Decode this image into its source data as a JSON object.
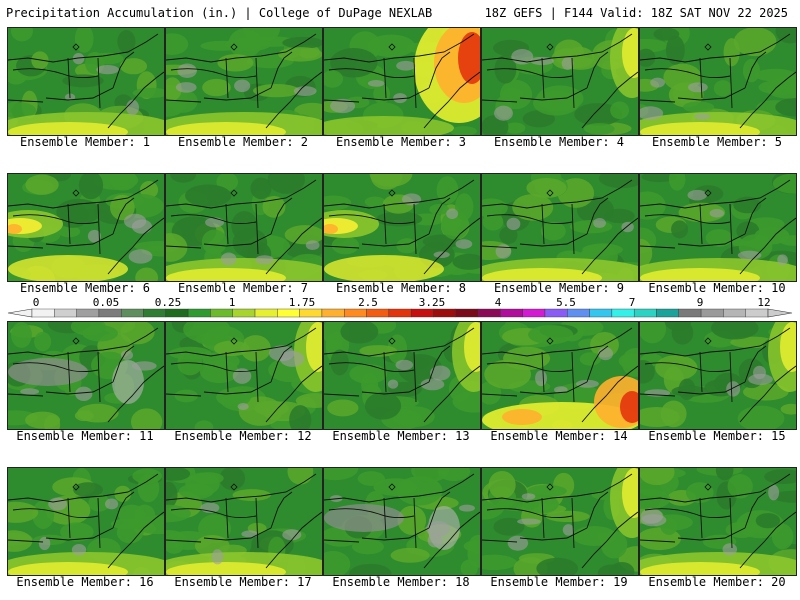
{
  "header": {
    "title": "Precipitation Accumulation (in.) | College of DuPage NEXLAB",
    "run_info": "18Z GEFS | F144 Valid: 18Z SAT NOV 22 2025"
  },
  "colorbar": {
    "labels": [
      "0",
      "0.05",
      "0.25",
      "1",
      "1.75",
      "2.5",
      "3.25",
      "4",
      "5.5",
      "7",
      "9",
      "12"
    ],
    "colors": [
      "#f2f2f2",
      "#cfcfcf",
      "#9f9f9f",
      "#7c7c7c",
      "#5f8f5f",
      "#2e7d32",
      "#1f6b1f",
      "#2f9a2f",
      "#6cbb2c",
      "#a8d42e",
      "#e6ef30",
      "#ffff33",
      "#ffd92f",
      "#ffb02e",
      "#ff8a1f",
      "#f25c13",
      "#e3350d",
      "#c70f0f",
      "#9e0d0d",
      "#7a0a1a",
      "#8b0a58",
      "#b00d9c",
      "#d21bd2",
      "#8a5cf5",
      "#5f8ff0",
      "#33c7f0",
      "#33f0e8",
      "#2bd3c5",
      "#1aa39a",
      "#7a7a7a",
      "#9a9a9a",
      "#b5b5b5",
      "#cccccc"
    ]
  },
  "panels": [
    {
      "label": "Ensemble Member: 1",
      "wet": "south"
    },
    {
      "label": "Ensemble Member: 2",
      "wet": "south"
    },
    {
      "label": "Ensemble Member: 3",
      "wet": "northeast-heavy"
    },
    {
      "label": "Ensemble Member: 4",
      "wet": "east"
    },
    {
      "label": "Ensemble Member: 5",
      "wet": "south"
    },
    {
      "label": "Ensemble Member: 6",
      "wet": "southwest"
    },
    {
      "label": "Ensemble Member: 7",
      "wet": "south"
    },
    {
      "label": "Ensemble Member: 8",
      "wet": "southwest"
    },
    {
      "label": "Ensemble Member: 9",
      "wet": "south"
    },
    {
      "label": "Ensemble Member: 10",
      "wet": "south"
    },
    {
      "label": "Ensemble Member: 11",
      "wet": "dry"
    },
    {
      "label": "Ensemble Member: 12",
      "wet": "east"
    },
    {
      "label": "Ensemble Member: 13",
      "wet": "east"
    },
    {
      "label": "Ensemble Member: 14",
      "wet": "southeast-heavy"
    },
    {
      "label": "Ensemble Member: 15",
      "wet": "east"
    },
    {
      "label": "Ensemble Member: 16",
      "wet": "south"
    },
    {
      "label": "Ensemble Member: 17",
      "wet": "south"
    },
    {
      "label": "Ensemble Member: 18",
      "wet": "dry"
    },
    {
      "label": "Ensemble Member: 19",
      "wet": "east"
    },
    {
      "label": "Ensemble Member: 20",
      "wet": "south"
    }
  ]
}
